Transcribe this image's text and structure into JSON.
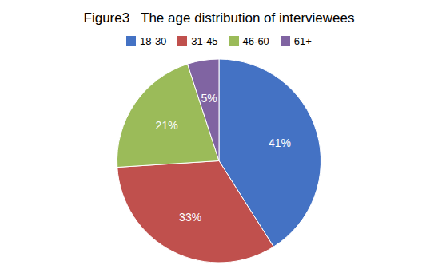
{
  "chart_data": {
    "type": "pie",
    "title": "Figure3   The age distribution of interviewees",
    "categories": [
      "18-30",
      "31-45",
      "46-60",
      "61+"
    ],
    "values": [
      41,
      33,
      21,
      5
    ],
    "value_labels": [
      "41%",
      "33%",
      "21%",
      "5%"
    ],
    "colors": [
      "#4472C4",
      "#C0504D",
      "#9BBB59",
      "#8064A2"
    ],
    "data_labels": true,
    "legend": "top"
  }
}
